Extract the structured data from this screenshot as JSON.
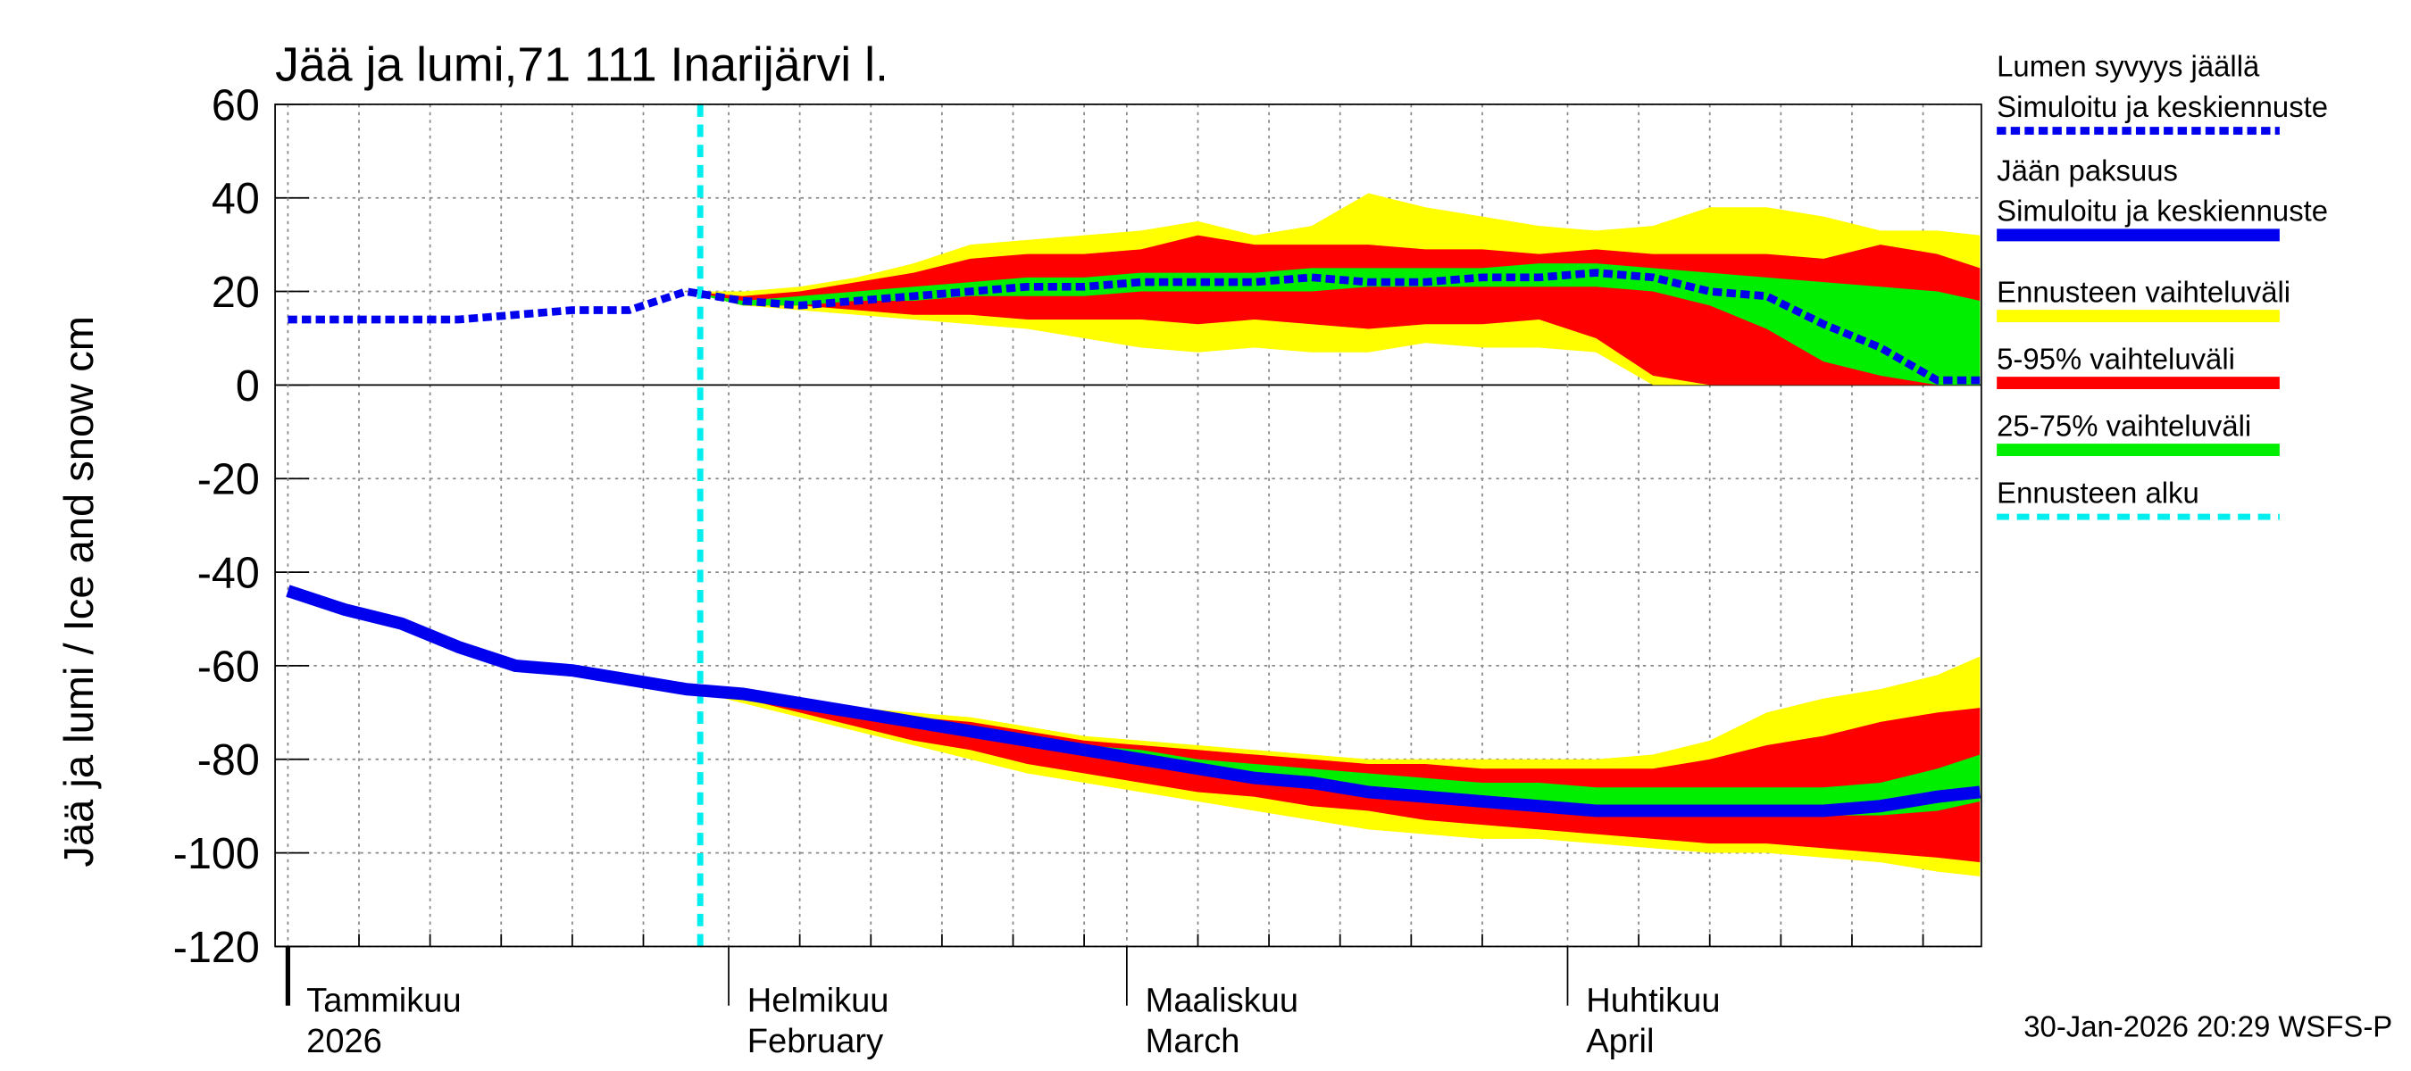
{
  "chart_data": {
    "type": "band-line",
    "title": "Jää ja lumi,71 111 Inarijärvi l.",
    "ylabel": "Jää ja lumi / Ice and snow    cm",
    "footer": "30-Jan-2026 20:29 WSFS-P",
    "x": [
      0,
      4,
      8,
      12,
      16,
      20,
      24,
      28,
      32,
      36,
      40,
      44,
      48,
      52,
      56,
      60,
      64,
      68,
      72,
      76,
      80,
      84,
      88,
      92,
      96,
      100,
      104,
      108,
      112,
      116,
      119
    ],
    "xlim": [
      -0.9,
      119.1
    ],
    "xticks": [
      {
        "value": 0,
        "label": "Tammikuu",
        "sublabel": "2026"
      },
      {
        "value": 31,
        "label": "Helmikuu",
        "sublabel": "February"
      },
      {
        "value": 59,
        "label": "Maaliskuu",
        "sublabel": "March"
      },
      {
        "value": 90,
        "label": "Huhtikuu",
        "sublabel": "April"
      }
    ],
    "xgrid": [
      5,
      10,
      15,
      20,
      25,
      36,
      41,
      46,
      51,
      56,
      64,
      69,
      74,
      79,
      84,
      95,
      100,
      105,
      110,
      115
    ],
    "ylim": [
      -120,
      60
    ],
    "yticks": [
      60,
      40,
      20,
      0,
      -20,
      -40,
      -60,
      -80,
      -100,
      -120
    ],
    "grid": true,
    "series": [
      {
        "name": "Lumen syvyys jäällä",
        "subtitle": "Simuloitu ja keskiennuste",
        "color": "#0000ee",
        "dashed": true,
        "values": [
          14,
          14,
          14,
          14,
          15,
          16,
          16,
          20,
          18,
          17,
          18,
          19,
          20,
          21,
          21,
          22,
          22,
          22,
          23,
          22,
          22,
          23,
          23,
          24,
          23,
          20,
          19,
          13,
          8,
          1,
          1
        ]
      },
      {
        "name": "Jään paksuus",
        "subtitle": "Simuloitu ja keskiennuste",
        "color": "#0000ee",
        "dashed": false,
        "values": [
          -44,
          -48,
          -51,
          -56,
          -60,
          -61,
          -63,
          -65,
          -66,
          -68,
          -70,
          -72,
          -74,
          -76,
          -78,
          -80,
          -82,
          -84,
          -85,
          -87,
          -88,
          -89,
          -90,
          -91,
          -91,
          -91,
          -91,
          -91,
          -90,
          -88,
          -87
        ]
      }
    ],
    "bands": [
      {
        "name": "Ennusteen vaihteluväli",
        "color": "#ffff00",
        "snow_upper": [
          null,
          null,
          null,
          null,
          null,
          null,
          null,
          20,
          20,
          21,
          23,
          26,
          30,
          31,
          32,
          33,
          35,
          32,
          34,
          41,
          38,
          36,
          34,
          33,
          34,
          38,
          38,
          36,
          33,
          33,
          32
        ],
        "snow_lower": [
          null,
          null,
          null,
          null,
          null,
          null,
          null,
          20,
          17,
          16,
          15,
          14,
          13,
          12,
          10,
          8,
          7,
          8,
          7,
          7,
          9,
          8,
          8,
          7,
          0,
          0,
          0,
          0,
          0,
          0,
          0
        ],
        "ice_upper": [
          null,
          null,
          null,
          null,
          null,
          null,
          null,
          -65,
          -66,
          -67,
          -69,
          -70,
          -71,
          -73,
          -75,
          -76,
          -77,
          -78,
          -79,
          -80,
          -80,
          -80,
          -80,
          -80,
          -79,
          -76,
          -70,
          -67,
          -65,
          -62,
          -58
        ],
        "ice_lower": [
          null,
          null,
          null,
          null,
          null,
          null,
          null,
          -65,
          -68,
          -71,
          -74,
          -77,
          -80,
          -83,
          -85,
          -87,
          -89,
          -91,
          -93,
          -95,
          -96,
          -97,
          -97,
          -98,
          -99,
          -100,
          -100,
          -101,
          -102,
          -104,
          -105
        ]
      },
      {
        "name": "5-95% vaihteluväli",
        "color": "#ff0000",
        "snow_upper": [
          null,
          null,
          null,
          null,
          null,
          null,
          null,
          20,
          19,
          20,
          22,
          24,
          27,
          28,
          28,
          29,
          32,
          30,
          30,
          30,
          29,
          29,
          28,
          29,
          28,
          28,
          28,
          27,
          30,
          28,
          25
        ],
        "snow_lower": [
          null,
          null,
          null,
          null,
          null,
          null,
          null,
          20,
          17,
          17,
          16,
          15,
          15,
          14,
          14,
          14,
          13,
          14,
          13,
          12,
          13,
          13,
          14,
          10,
          2,
          0,
          0,
          0,
          0,
          0,
          0
        ],
        "ice_upper": [
          null,
          null,
          null,
          null,
          null,
          null,
          null,
          -65,
          -66,
          -68,
          -69,
          -71,
          -72,
          -74,
          -76,
          -77,
          -78,
          -79,
          -80,
          -81,
          -81,
          -82,
          -82,
          -82,
          -82,
          -80,
          -77,
          -75,
          -72,
          -70,
          -69
        ],
        "ice_lower": [
          null,
          null,
          null,
          null,
          null,
          null,
          null,
          -65,
          -67,
          -70,
          -73,
          -76,
          -78,
          -81,
          -83,
          -85,
          -87,
          -88,
          -90,
          -91,
          -93,
          -94,
          -95,
          -96,
          -97,
          -98,
          -98,
          -99,
          -100,
          -101,
          -102
        ]
      },
      {
        "name": "25-75% vaihteluväli",
        "color": "#00ee00",
        "snow_upper": [
          null,
          null,
          null,
          null,
          null,
          null,
          null,
          20,
          18,
          19,
          20,
          21,
          22,
          23,
          23,
          24,
          24,
          24,
          25,
          25,
          25,
          25,
          26,
          26,
          25,
          24,
          23,
          22,
          21,
          20,
          18
        ],
        "snow_lower": [
          null,
          null,
          null,
          null,
          null,
          null,
          null,
          20,
          17,
          17,
          18,
          18,
          19,
          19,
          19,
          20,
          20,
          20,
          20,
          21,
          21,
          21,
          21,
          21,
          20,
          17,
          12,
          5,
          2,
          0,
          0
        ],
        "ice_upper": [
          null,
          null,
          null,
          null,
          null,
          null,
          null,
          -65,
          -66,
          -68,
          -70,
          -72,
          -74,
          -75,
          -77,
          -78,
          -80,
          -81,
          -82,
          -83,
          -84,
          -85,
          -85,
          -86,
          -86,
          -86,
          -86,
          -86,
          -85,
          -82,
          -79
        ],
        "ice_lower": [
          null,
          null,
          null,
          null,
          null,
          null,
          null,
          -65,
          -67,
          -69,
          -71,
          -73,
          -75,
          -77,
          -79,
          -81,
          -83,
          -85,
          -86,
          -88,
          -89,
          -90,
          -90,
          -91,
          -92,
          -92,
          -92,
          -92,
          -92,
          -91,
          -89
        ]
      }
    ],
    "forecast_start": {
      "name": "Ennusteen alku",
      "x": 29,
      "color": "#00eeee"
    }
  }
}
